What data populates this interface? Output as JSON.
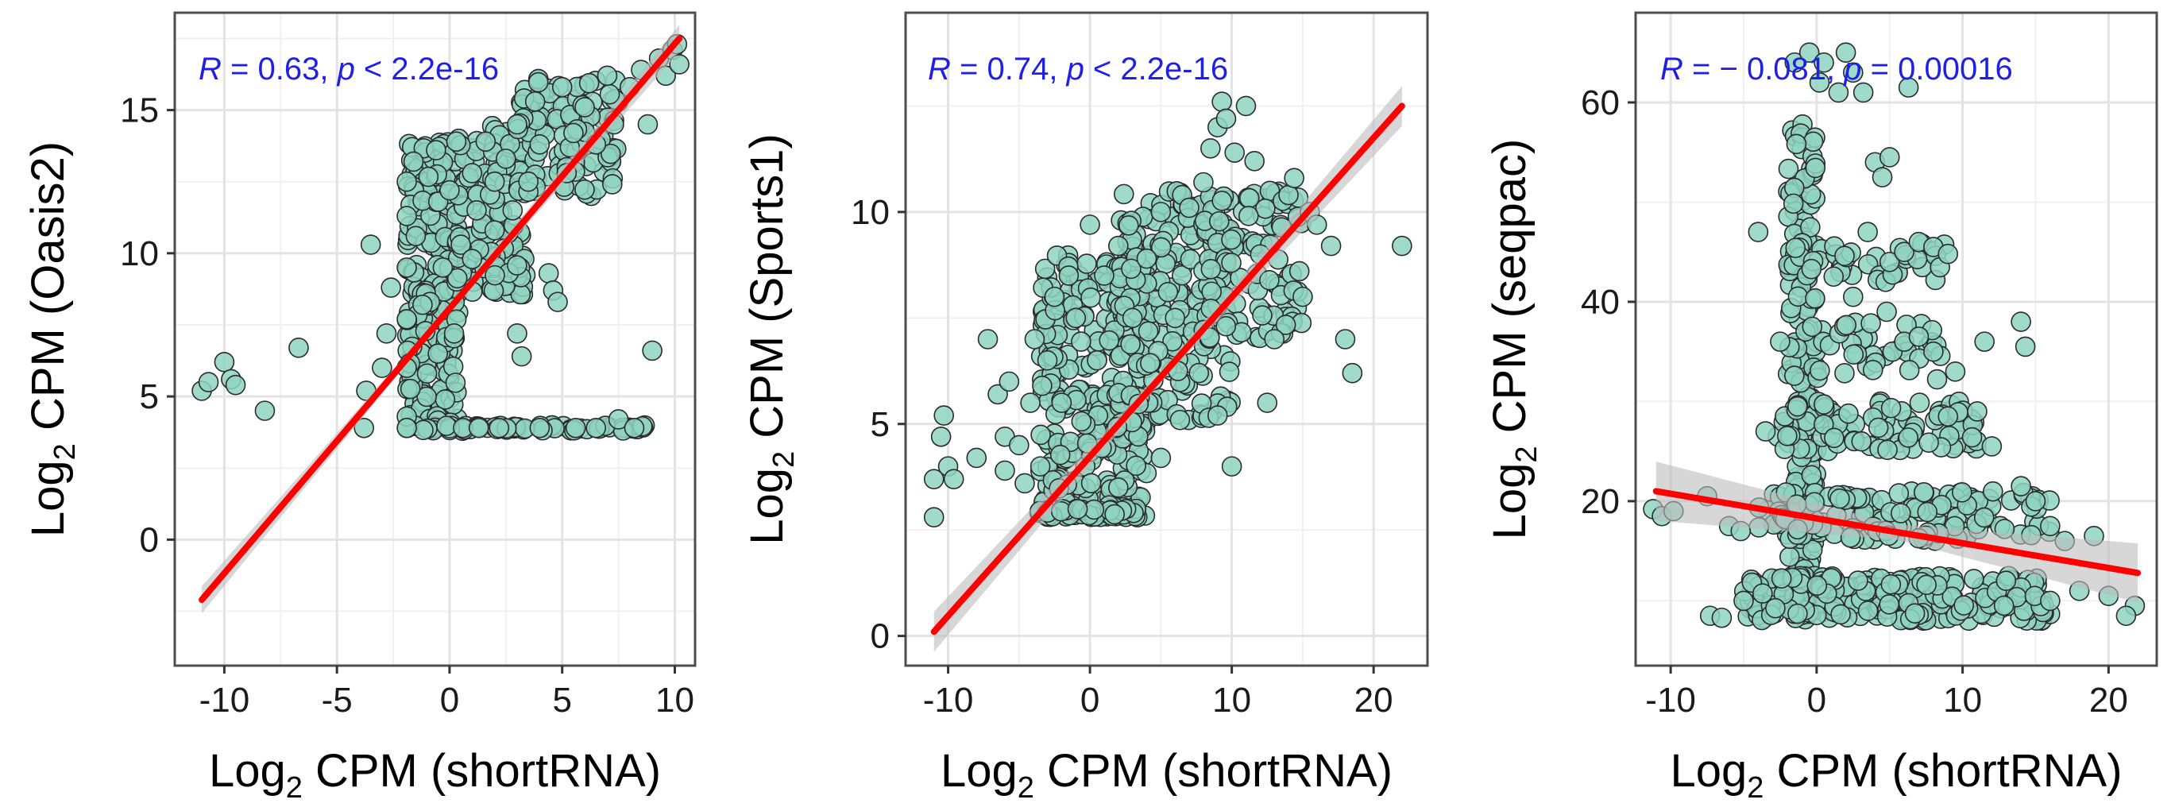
{
  "chart_data": [
    {
      "type": "scatter",
      "title": "",
      "xlabel": {
        "prefix": "Log",
        "sub": "2",
        "suffix": " CPM ",
        "paren": "(shortRNA)"
      },
      "ylabel": {
        "prefix": "Log",
        "sub": "2",
        "suffix": " CPM ",
        "paren": "(Oasis2)"
      },
      "xlim": [
        -12.2,
        10.9
      ],
      "ylim": [
        -4.4,
        18.4
      ],
      "xticks": [
        -10,
        -5,
        0,
        5,
        10
      ],
      "xtick_labels": [
        "-10",
        "-5",
        "0",
        "5",
        "10"
      ],
      "yticks": [
        0,
        5,
        10,
        15
      ],
      "ytick_labels": [
        "0",
        "5",
        "10",
        "15"
      ],
      "grid": true,
      "annotation": {
        "r_symbol": "R",
        "r_text": " = 0.63, ",
        "p_symbol": "p",
        "p_text": " < 2.2e-16"
      },
      "regression": {
        "x": [
          -11,
          10.2
        ],
        "y": [
          -2.1,
          17.5
        ],
        "color": "#ff0000"
      },
      "point_color": "#8fd3c1",
      "points": [
        [
          -11,
          5.2
        ],
        [
          -10.7,
          5.5
        ],
        [
          -10,
          6.2
        ],
        [
          -9.7,
          5.6
        ],
        [
          -9.5,
          5.4
        ],
        [
          -8.2,
          4.5
        ],
        [
          -6.7,
          6.7
        ],
        [
          -3.5,
          10.3
        ],
        [
          -3.7,
          5.2
        ],
        [
          -3.8,
          3.9
        ],
        [
          -3.0,
          6.0
        ],
        [
          -2.6,
          8.8
        ],
        [
          -2.8,
          7.2
        ],
        [
          -1.9,
          12.5
        ],
        [
          -1.9,
          11.3
        ],
        [
          -1.9,
          9.5
        ],
        [
          -1.9,
          7.7
        ],
        [
          -1.9,
          6.0
        ],
        [
          -1.9,
          4.3
        ],
        [
          -1.9,
          3.9
        ],
        [
          -1.6,
          13.2
        ],
        [
          -1.5,
          10.6
        ],
        [
          -1.2,
          8.2
        ],
        [
          -1.0,
          5.8
        ],
        [
          -0.6,
          13.6
        ],
        [
          -0.5,
          11.8
        ],
        [
          -0.3,
          9.5
        ],
        [
          0,
          12.2
        ],
        [
          0.2,
          7.2
        ],
        [
          0.3,
          13.9
        ],
        [
          0.5,
          10.3
        ],
        [
          0.6,
          3.9
        ],
        [
          1,
          12.8
        ],
        [
          1,
          9.8
        ],
        [
          1.2,
          11.5
        ],
        [
          1.3,
          3.9
        ],
        [
          1.6,
          13.9
        ],
        [
          2,
          12.5
        ],
        [
          2,
          10.8
        ],
        [
          2.2,
          3.9
        ],
        [
          2.5,
          13.3
        ],
        [
          2.8,
          11.5
        ],
        [
          3,
          14.5
        ],
        [
          3,
          7.2
        ],
        [
          3.2,
          6.4
        ],
        [
          3.5,
          12.5
        ],
        [
          3.8,
          15.3
        ],
        [
          4,
          13.8
        ],
        [
          4,
          3.9
        ],
        [
          4.4,
          9.3
        ],
        [
          4.6,
          8.7
        ],
        [
          4.8,
          8.3
        ],
        [
          5,
          15.8
        ],
        [
          5.2,
          12.8
        ],
        [
          5.5,
          14.2
        ],
        [
          5.6,
          3.9
        ],
        [
          6,
          15.1
        ],
        [
          6.5,
          13.8
        ],
        [
          6.5,
          3.9
        ],
        [
          7,
          16.2
        ],
        [
          7.3,
          14.5
        ],
        [
          7.5,
          4.2
        ],
        [
          8,
          15.8
        ],
        [
          8.2,
          3.9
        ],
        [
          8.5,
          16.4
        ],
        [
          8.8,
          14.5
        ],
        [
          9,
          6.6
        ],
        [
          9.3,
          16.8
        ],
        [
          9.6,
          16.2
        ],
        [
          9.9,
          17.1
        ],
        [
          10.1,
          17.3
        ],
        [
          10.2,
          16.6
        ]
      ],
      "dense_bands": [
        {
          "x": [
            -1.9,
            0.4
          ],
          "y": [
            3.9,
            13.9
          ],
          "count": 260
        },
        {
          "x": [
            0.3,
            3.5
          ],
          "y": [
            8.5,
            14.5
          ],
          "count": 130
        },
        {
          "x": [
            3.0,
            7.5
          ],
          "y": [
            12.0,
            16.2
          ],
          "count": 110
        },
        {
          "x": [
            -1.9,
            9.0
          ],
          "y": [
            3.8,
            4.0
          ],
          "count": 60
        }
      ]
    },
    {
      "type": "scatter",
      "title": "",
      "xlabel": {
        "prefix": "Log",
        "sub": "2",
        "suffix": " CPM ",
        "paren": "(shortRNA)"
      },
      "ylabel": {
        "prefix": "Log",
        "sub": "2",
        "suffix": " CPM ",
        "paren": "(Sports1)"
      },
      "xlim": [
        -13.0,
        23.8
      ],
      "ylim": [
        -0.7,
        14.7
      ],
      "xticks": [
        -10,
        0,
        10,
        20
      ],
      "xtick_labels": [
        "-10",
        "0",
        "10",
        "20"
      ],
      "yticks": [
        0,
        5,
        10
      ],
      "ytick_labels": [
        "0",
        "5",
        "10"
      ],
      "grid": true,
      "annotation": {
        "r_symbol": "R",
        "r_text": " = 0.74, ",
        "p_symbol": "p",
        "p_text": " < 2.2e-16"
      },
      "regression": {
        "x": [
          -11,
          22
        ],
        "y": [
          0.1,
          12.5
        ],
        "color": "#ff0000"
      },
      "point_color": "#8fd3c1",
      "points": [
        [
          -11,
          2.8
        ],
        [
          -11,
          3.7
        ],
        [
          -10.5,
          4.7
        ],
        [
          -10.3,
          5.2
        ],
        [
          -10,
          4.0
        ],
        [
          -9.6,
          3.7
        ],
        [
          -8,
          4.2
        ],
        [
          -7.2,
          7.0
        ],
        [
          -6.5,
          5.7
        ],
        [
          -6,
          4.7
        ],
        [
          -6,
          3.9
        ],
        [
          -5.7,
          6.0
        ],
        [
          -5,
          4.5
        ],
        [
          -4.6,
          3.6
        ],
        [
          -4.2,
          5.5
        ],
        [
          -3.9,
          7.0
        ],
        [
          -3.5,
          4.0
        ],
        [
          -3,
          6.5
        ],
        [
          -2.5,
          8.0
        ],
        [
          -2,
          5.5
        ],
        [
          -1.5,
          8.5
        ],
        [
          -1,
          7.5
        ],
        [
          0,
          9.7
        ],
        [
          0.5,
          6.5
        ],
        [
          1,
          8.5
        ],
        [
          2,
          9.2
        ],
        [
          3,
          7.5
        ],
        [
          4,
          8.9
        ],
        [
          5,
          10.0
        ],
        [
          6,
          7.5
        ],
        [
          6.5,
          10.4
        ],
        [
          7,
          10.1
        ],
        [
          8,
          10.7
        ],
        [
          8.5,
          11.5
        ],
        [
          9,
          12.0
        ],
        [
          9.3,
          12.6
        ],
        [
          9.6,
          12.2
        ],
        [
          10.2,
          11.4
        ],
        [
          11,
          12.5
        ],
        [
          11.6,
          11.2
        ],
        [
          12,
          9.0
        ],
        [
          12.5,
          5.5
        ],
        [
          13,
          7.0
        ],
        [
          14,
          10.4
        ],
        [
          14.4,
          10.8
        ],
        [
          15,
          8.0
        ],
        [
          15.5,
          10.0
        ],
        [
          16,
          9.7
        ],
        [
          17,
          9.2
        ],
        [
          18,
          7.0
        ],
        [
          18.5,
          6.2
        ],
        [
          10,
          4.0
        ],
        [
          9,
          5.2
        ],
        [
          5,
          4.2
        ],
        [
          2,
          3.5
        ],
        [
          22,
          9.2
        ]
      ],
      "dense_bands": [
        {
          "x": [
            -3.6,
            4.0
          ],
          "y": [
            2.8,
            9.0
          ],
          "count": 280
        },
        {
          "x": [
            2.0,
            10.0
          ],
          "y": [
            5.0,
            10.5
          ],
          "count": 200
        },
        {
          "x": [
            8.0,
            15.0
          ],
          "y": [
            7.0,
            10.5
          ],
          "count": 100
        },
        {
          "x": [
            -3.6,
            3.5
          ],
          "y": [
            2.8,
            3.0
          ],
          "count": 50
        }
      ]
    },
    {
      "type": "scatter",
      "title": "",
      "xlabel": {
        "prefix": "Log",
        "sub": "2",
        "suffix": " CPM ",
        "paren": "(shortRNA)"
      },
      "ylabel": {
        "prefix": "Log",
        "sub": "2",
        "suffix": " CPM ",
        "paren": "(seqpac)"
      },
      "xlim": [
        -12.4,
        23.3
      ],
      "ylim": [
        3.5,
        69.0
      ],
      "xticks": [
        -10,
        0,
        10,
        20
      ],
      "xtick_labels": [
        "-10",
        "0",
        "10",
        "20"
      ],
      "yticks": [
        20,
        40,
        60
      ],
      "ytick_labels": [
        "20",
        "40",
        "60"
      ],
      "grid": true,
      "annotation": {
        "r_symbol": "R",
        "r_text": " = − 0.081, ",
        "p_symbol": "p",
        "p_text": " = 0.00016"
      },
      "regression": {
        "x": [
          -11,
          22
        ],
        "y": [
          21.0,
          12.8
        ],
        "color": "#ff0000"
      },
      "point_color": "#8fd3c1",
      "points": [
        [
          -11.2,
          19.2
        ],
        [
          -10.6,
          18.5
        ],
        [
          -9.8,
          19.0
        ],
        [
          -7.5,
          20.5
        ],
        [
          -6,
          17.5
        ],
        [
          -7.3,
          8.5
        ],
        [
          -6.5,
          8.3
        ],
        [
          -5,
          10.0
        ],
        [
          -5.2,
          17.0
        ],
        [
          -4,
          47.0
        ],
        [
          -3.5,
          27.0
        ],
        [
          -2.5,
          36.0
        ],
        [
          -1.5,
          64.0
        ],
        [
          -0.5,
          65.0
        ],
        [
          0.2,
          62.0
        ],
        [
          0.5,
          64.0
        ],
        [
          1.5,
          61.0
        ],
        [
          2,
          65.0
        ],
        [
          2.5,
          63.0
        ],
        [
          3.2,
          61.0
        ],
        [
          4,
          54.0
        ],
        [
          4.5,
          52.5
        ],
        [
          5,
          54.5
        ],
        [
          6.3,
          61.5
        ],
        [
          3.5,
          47.0
        ],
        [
          5,
          44.0
        ],
        [
          6,
          45.0
        ],
        [
          7,
          46.0
        ],
        [
          8,
          45.5
        ],
        [
          9,
          44.8
        ],
        [
          2.5,
          40.5
        ],
        [
          4.8,
          39.0
        ],
        [
          5.2,
          35.0
        ],
        [
          6,
          36.0
        ],
        [
          7,
          36.5
        ],
        [
          8,
          35.0
        ],
        [
          9.5,
          33.0
        ],
        [
          11.5,
          36.0
        ],
        [
          14,
          38.0
        ],
        [
          14.3,
          35.5
        ],
        [
          9,
          28.5
        ],
        [
          11,
          29.0
        ],
        [
          12,
          25.5
        ],
        [
          14,
          21.5
        ],
        [
          15,
          20.0
        ],
        [
          16,
          17.5
        ],
        [
          17,
          16.0
        ],
        [
          19,
          16.5
        ],
        [
          21.8,
          9.5
        ],
        [
          21.2,
          8.5
        ],
        [
          20,
          10.5
        ],
        [
          18,
          11.0
        ],
        [
          16,
          10.0
        ]
      ],
      "dense_bands": [
        {
          "x": [
            -2.0,
            0.0
          ],
          "y": [
            8.0,
            58.0
          ],
          "count": 140
        },
        {
          "x": [
            -5.0,
            16.0
          ],
          "y": [
            8.0,
            12.5
          ],
          "count": 260
        },
        {
          "x": [
            -4.0,
            16.0
          ],
          "y": [
            16.0,
            21.0
          ],
          "count": 130
        },
        {
          "x": [
            -3.0,
            11.0
          ],
          "y": [
            25.0,
            30.0
          ],
          "count": 90
        },
        {
          "x": [
            -2.0,
            9.0
          ],
          "y": [
            32.0,
            38.0
          ],
          "count": 45
        },
        {
          "x": [
            -2.0,
            9.0
          ],
          "y": [
            42.0,
            46.0
          ],
          "count": 40
        }
      ]
    }
  ]
}
